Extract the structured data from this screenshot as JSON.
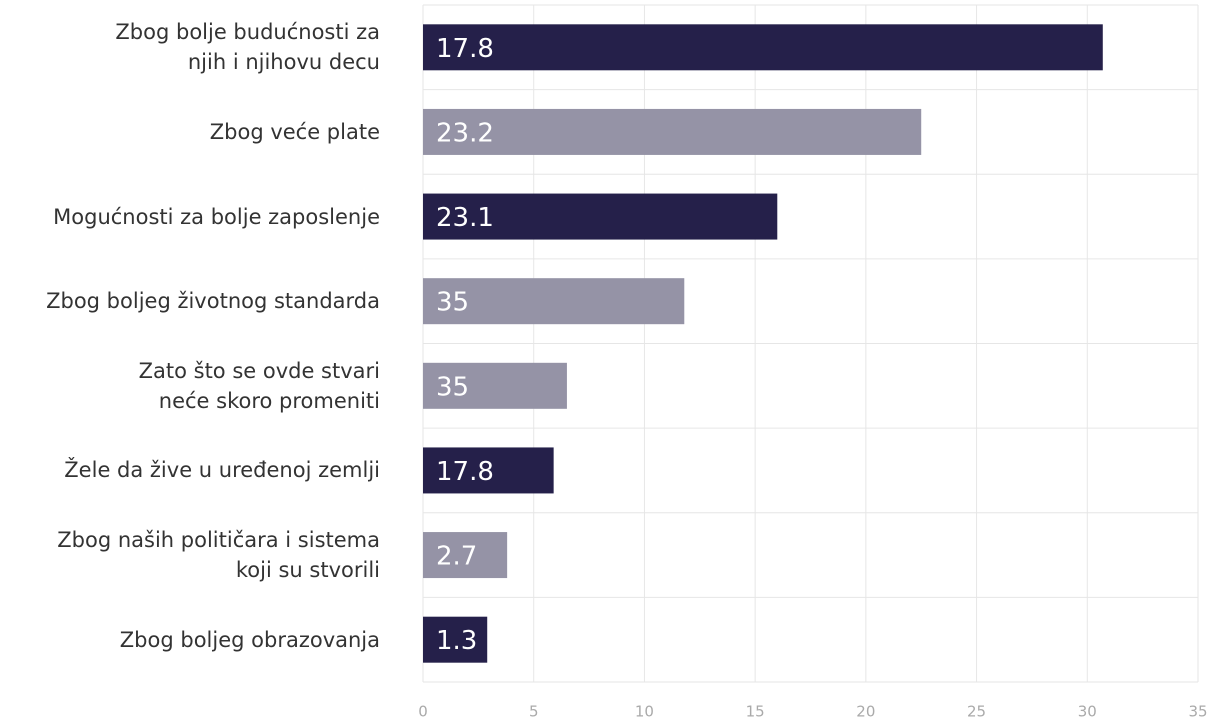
{
  "chart_data": {
    "type": "bar",
    "orientation": "horizontal",
    "categories": [
      "Zbog bolje budućnosti za\nnjih i njihovu decu",
      "Zbog veće plate",
      "Mogućnosti za bolje zaposlenje",
      "Zbog boljeg životnog standarda",
      "Zato što se ovde stvari\nneće skoro promeniti",
      "Žele da žive u uređenoj zemlji",
      "Zbog naših političara i sistema\nkoji su stvorili",
      "Zbog boljeg obrazovanja"
    ],
    "values": [
      30.7,
      22.5,
      16,
      11.8,
      6.5,
      5.9,
      3.8,
      2.9
    ],
    "bar_texts": [
      "17.8",
      "23.2",
      "23.1",
      "35",
      "35",
      "17.8",
      "2.7",
      "1.3"
    ],
    "colors": [
      "#25204a",
      "#9593a6",
      "#25204a",
      "#9593a6",
      "#9593a6",
      "#25204a",
      "#9593a6",
      "#25204a"
    ],
    "xlim": [
      0,
      35
    ],
    "xticks": [
      0,
      5,
      10,
      15,
      20,
      25,
      30,
      35
    ],
    "grid": true
  }
}
